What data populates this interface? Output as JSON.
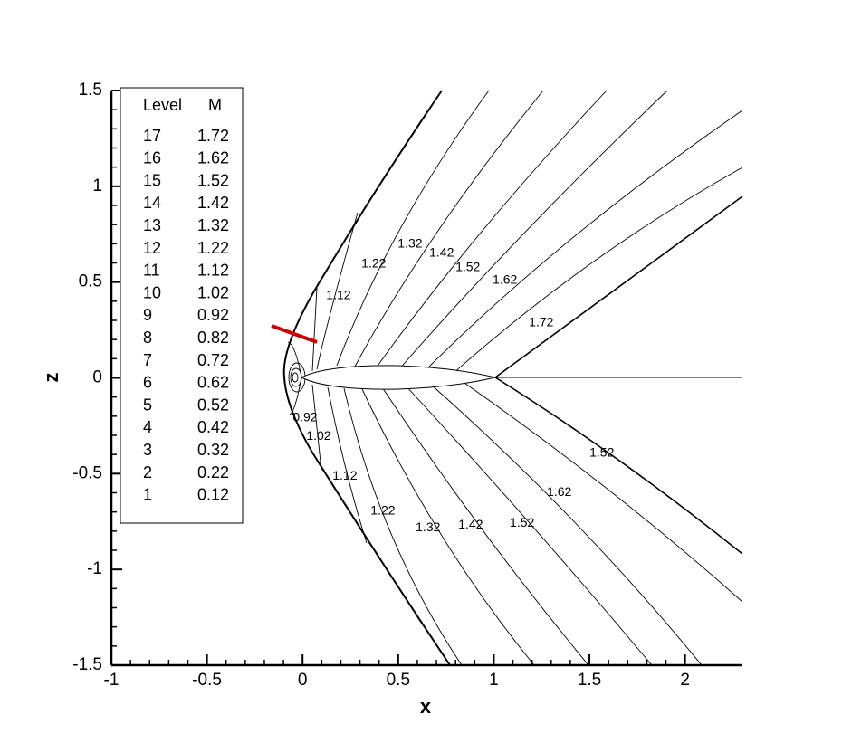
{
  "chart_data": {
    "type": "contour",
    "x_label": "x",
    "y_label": "z",
    "xlim": [
      -1,
      2.3
    ],
    "ylim": [
      -1.5,
      1.5
    ],
    "xticks": [
      -1,
      -0.5,
      0,
      0.5,
      1,
      1.5,
      2
    ],
    "yticks": [
      -1.5,
      -1,
      -0.5,
      0,
      0.5,
      1,
      1.5
    ],
    "legend": {
      "headers": [
        "Level",
        "M"
      ],
      "levels": [
        17,
        16,
        15,
        14,
        13,
        12,
        11,
        10,
        9,
        8,
        7,
        6,
        5,
        4,
        3,
        2,
        1
      ],
      "values": [
        1.72,
        1.62,
        1.52,
        1.42,
        1.32,
        1.22,
        1.12,
        1.02,
        0.92,
        0.82,
        0.72,
        0.62,
        0.52,
        0.42,
        0.32,
        0.22,
        0.12
      ]
    },
    "contour_labels": [
      {
        "value": 1.12,
        "x": 0.188,
        "z": 0.428
      },
      {
        "value": 1.22,
        "x": 0.372,
        "z": 0.593
      },
      {
        "value": 1.32,
        "x": 0.562,
        "z": 0.697
      },
      {
        "value": 1.42,
        "x": 0.727,
        "z": 0.65
      },
      {
        "value": 1.52,
        "x": 0.864,
        "z": 0.574
      },
      {
        "value": 1.62,
        "x": 1.058,
        "z": 0.508
      },
      {
        "value": 1.72,
        "x": 1.248,
        "z": 0.286
      },
      {
        "value": 0.92,
        "x": 0.013,
        "z": -0.21
      },
      {
        "value": 1.02,
        "x": 0.084,
        "z": -0.305
      },
      {
        "value": 1.12,
        "x": 0.221,
        "z": -0.513
      },
      {
        "value": 1.22,
        "x": 0.42,
        "z": -0.697
      },
      {
        "value": 1.32,
        "x": 0.656,
        "z": -0.783
      },
      {
        "value": 1.42,
        "x": 0.879,
        "z": -0.768
      },
      {
        "value": 1.52,
        "x": 1.148,
        "z": -0.759
      },
      {
        "value": 1.62,
        "x": 1.342,
        "z": -0.598
      },
      {
        "value": 1.52,
        "x": 1.565,
        "z": -0.394
      }
    ]
  }
}
